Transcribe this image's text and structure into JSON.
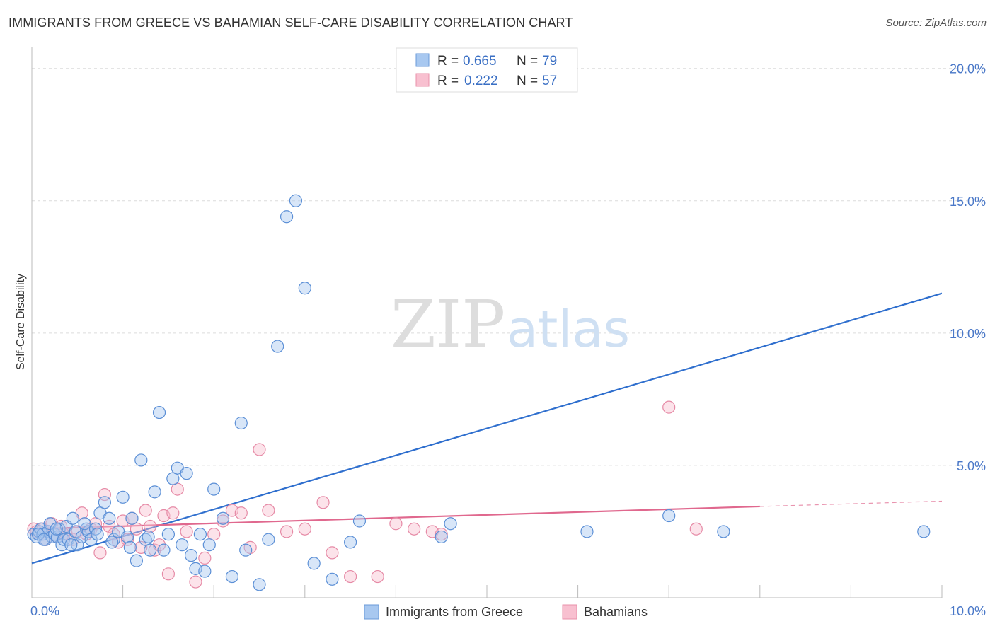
{
  "header": {
    "title": "IMMIGRANTS FROM GREECE VS BAHAMIAN SELF-CARE DISABILITY CORRELATION CHART",
    "source": "Source: ZipAtlas.com"
  },
  "watermark": {
    "zip": "ZIP",
    "atlas": "atlas"
  },
  "legend": {
    "rows": [
      {
        "r_label": "R =",
        "r_value": "0.665",
        "n_label": "N =",
        "n_value": "79",
        "color": "#a8c8f0",
        "stroke": "#6a9ad8"
      },
      {
        "r_label": "R =",
        "r_value": "0.222",
        "n_label": "N =",
        "n_value": "57",
        "color": "#f8c0d0",
        "stroke": "#e890aa"
      }
    ]
  },
  "chart_data": {
    "type": "scatter",
    "title": "IMMIGRANTS FROM GREECE VS BAHAMIAN SELF-CARE DISABILITY CORRELATION CHART",
    "xlabel": "",
    "ylabel": "Self-Care Disability",
    "xlim": [
      0,
      10
    ],
    "ylim": [
      0,
      20.5
    ],
    "x_tick_labels": [
      "0.0%",
      "10.0%"
    ],
    "x_tick_values": [
      0,
      10
    ],
    "y_tick_labels": [
      "5.0%",
      "10.0%",
      "15.0%",
      "20.0%"
    ],
    "y_tick_values": [
      5,
      10,
      15,
      20
    ],
    "grid": true,
    "legend_position": "top-center",
    "series": [
      {
        "name": "Immigrants from Greece",
        "color": "#a8c8f0",
        "stroke": "#5b8fd6",
        "r": 0.665,
        "n": 79,
        "trend": {
          "x": [
            0,
            10
          ],
          "y": [
            1.3,
            11.5
          ],
          "color": "#2f6fce"
        },
        "x": [
          0.02,
          0.05,
          0.08,
          0.1,
          0.12,
          0.15,
          0.18,
          0.2,
          0.22,
          0.25,
          0.28,
          0.3,
          0.33,
          0.35,
          0.38,
          0.4,
          0.45,
          0.48,
          0.5,
          0.55,
          0.6,
          0.62,
          0.65,
          0.7,
          0.75,
          0.8,
          0.85,
          0.9,
          0.95,
          1.0,
          1.05,
          1.1,
          1.15,
          1.2,
          1.25,
          1.3,
          1.35,
          1.4,
          1.45,
          1.5,
          1.55,
          1.6,
          1.65,
          1.7,
          1.75,
          1.8,
          1.85,
          1.9,
          1.95,
          2.0,
          2.1,
          2.2,
          2.3,
          2.35,
          2.5,
          2.6,
          2.7,
          2.8,
          2.9,
          3.0,
          3.1,
          3.3,
          3.5,
          3.6,
          4.5,
          4.6,
          6.1,
          7.0,
          7.6,
          9.8,
          0.07,
          0.13,
          0.27,
          0.43,
          0.58,
          0.72,
          0.88,
          1.08,
          1.28
        ],
        "y": [
          2.4,
          2.3,
          2.5,
          2.6,
          2.4,
          2.2,
          2.5,
          2.8,
          2.3,
          2.4,
          2.3,
          2.6,
          2.0,
          2.2,
          2.7,
          2.2,
          3.0,
          2.5,
          2.0,
          2.3,
          2.6,
          2.5,
          2.2,
          2.6,
          3.2,
          3.6,
          3.0,
          2.2,
          2.5,
          3.8,
          2.3,
          3.0,
          1.4,
          5.2,
          2.2,
          1.8,
          4.0,
          7.0,
          1.8,
          2.4,
          4.5,
          4.9,
          2.0,
          4.7,
          1.6,
          1.1,
          2.4,
          1.0,
          2.0,
          4.1,
          3.0,
          0.8,
          6.6,
          1.8,
          0.5,
          2.2,
          9.5,
          14.4,
          15.0,
          11.7,
          1.3,
          0.7,
          2.1,
          2.9,
          2.3,
          2.8,
          2.5,
          3.1,
          2.5,
          2.5,
          2.4,
          2.2,
          2.6,
          2.0,
          2.8,
          2.4,
          2.1,
          1.9,
          2.3
        ]
      },
      {
        "name": "Bahamians",
        "color": "#f8c0d0",
        "stroke": "#e68aa6",
        "r": 0.222,
        "n": 57,
        "trend": {
          "x": [
            0,
            8.0
          ],
          "y": [
            2.6,
            3.45
          ],
          "color": "#e0688e",
          "dashed_to": 10,
          "dashed_y": 3.65
        },
        "x": [
          0.02,
          0.05,
          0.08,
          0.12,
          0.18,
          0.22,
          0.28,
          0.32,
          0.38,
          0.45,
          0.5,
          0.55,
          0.6,
          0.65,
          0.7,
          0.75,
          0.8,
          0.85,
          0.9,
          0.95,
          1.0,
          1.05,
          1.1,
          1.15,
          1.2,
          1.25,
          1.3,
          1.35,
          1.4,
          1.45,
          1.5,
          1.55,
          1.6,
          1.7,
          1.8,
          1.9,
          2.0,
          2.1,
          2.2,
          2.3,
          2.4,
          2.5,
          2.6,
          2.8,
          3.0,
          3.2,
          3.3,
          3.5,
          3.8,
          4.0,
          4.2,
          4.4,
          4.5,
          7.0,
          7.3,
          0.15,
          0.35
        ],
        "y": [
          2.6,
          2.5,
          2.4,
          2.6,
          2.5,
          2.8,
          2.3,
          2.7,
          2.4,
          2.2,
          2.5,
          3.2,
          2.4,
          2.6,
          2.8,
          1.7,
          3.9,
          2.7,
          2.4,
          2.1,
          2.9,
          2.2,
          3.0,
          2.6,
          1.9,
          3.3,
          2.7,
          1.8,
          2.0,
          3.1,
          0.9,
          3.2,
          4.1,
          2.5,
          0.6,
          1.5,
          2.4,
          2.9,
          3.3,
          3.2,
          1.9,
          5.6,
          3.3,
          2.5,
          2.6,
          3.6,
          1.7,
          0.8,
          0.8,
          2.8,
          2.6,
          2.5,
          2.4,
          7.2,
          2.6,
          2.2,
          2.4
        ]
      }
    ]
  }
}
